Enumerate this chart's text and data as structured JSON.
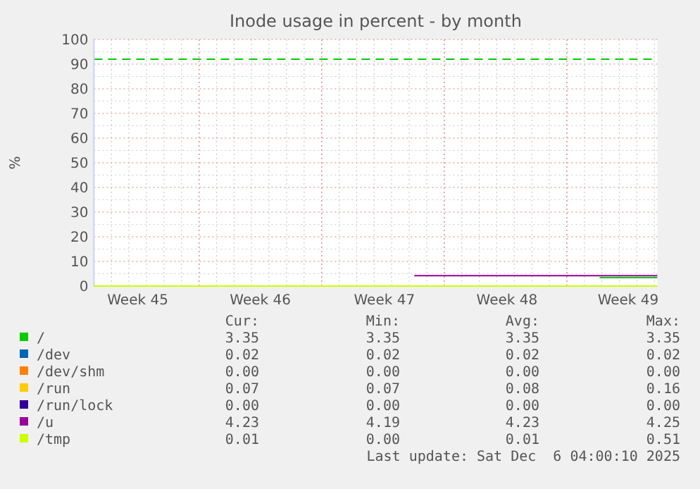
{
  "chart_data": {
    "type": "line",
    "title": "Inode usage in percent - by month",
    "ylabel": "%",
    "xlim": [
      "2025-11-04T00:00",
      "2025-12-06T04:00"
    ],
    "xticks": [
      {
        "value": "2025-11-06T12:00",
        "label": "Week 45"
      },
      {
        "value": "2025-11-13T12:00",
        "label": "Week 46"
      },
      {
        "value": "2025-11-20T14:00",
        "label": "Week 47"
      },
      {
        "value": "2025-11-27T14:00",
        "label": "Week 48"
      },
      {
        "value": "2025-12-04T12:00",
        "label": "Week 49"
      }
    ],
    "ylim": [
      0,
      100
    ],
    "yticks": [
      0,
      10,
      20,
      30,
      40,
      50,
      60,
      70,
      80,
      90,
      100
    ],
    "grid": true,
    "legend": "bottom",
    "line_style": "solid",
    "series": [
      {
        "name": "/",
        "color": "#00cc00",
        "x": [
          "2025-12-02T21:00",
          "2025-12-06T04:00"
        ],
        "values": [
          3.4,
          3.4
        ]
      },
      {
        "name": "/dev",
        "color": "#0066b3",
        "values": [
          null
        ]
      },
      {
        "name": "/dev/shm",
        "color": "#ff8000",
        "values": [
          null
        ]
      },
      {
        "name": "/run",
        "color": "#ffcc00",
        "values": [
          null
        ]
      },
      {
        "name": "/run/lock",
        "color": "#330099",
        "values": [
          null
        ]
      },
      {
        "name": "/u",
        "color": "#990099",
        "x": [
          "2025-11-22T07:00",
          "2025-12-06T04:00"
        ],
        "values": [
          4.2,
          4.2
        ]
      },
      {
        "name": "/tmp",
        "color": "#ccff00",
        "x": [
          "2025-11-04T00:00",
          "2025-12-06T04:00"
        ],
        "values": [
          0,
          0
        ]
      }
    ],
    "ref_lines": [
      {
        "axis": "y",
        "value": 92,
        "color": "#00cc00",
        "line_style": "dashed"
      }
    ],
    "annotations": [
      "Cur:",
      "Min:",
      "Avg:",
      "Max:",
      "3.35",
      "3.35",
      "3.35",
      "3.35",
      "0.02",
      "0.02",
      "0.02",
      "0.02",
      "0.00",
      "0.00",
      "0.00",
      "0.00",
      "0.07",
      "0.07",
      "0.08",
      "0.16",
      "0.00",
      "0.00",
      "0.00",
      "0.00",
      "4.23",
      "4.19",
      "4.23",
      "4.25",
      "0.01",
      "0.00",
      "0.01",
      "0.51",
      "Last update: Sat Dec  6 04:00:10 2025"
    ]
  }
}
